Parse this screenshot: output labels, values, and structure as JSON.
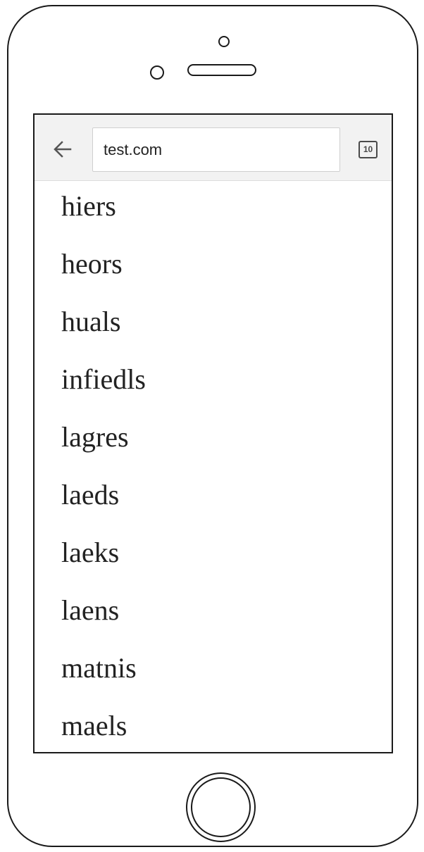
{
  "browser": {
    "url": "test.com",
    "tab_count": "10",
    "back_icon": "arrow-left-icon",
    "tabs_icon": "tab-switcher-icon"
  },
  "results": [
    "hiers",
    "heors",
    "huals",
    "infiedls",
    "lagres",
    "laeds",
    "laeks",
    "laens",
    "matnis",
    "maels"
  ]
}
